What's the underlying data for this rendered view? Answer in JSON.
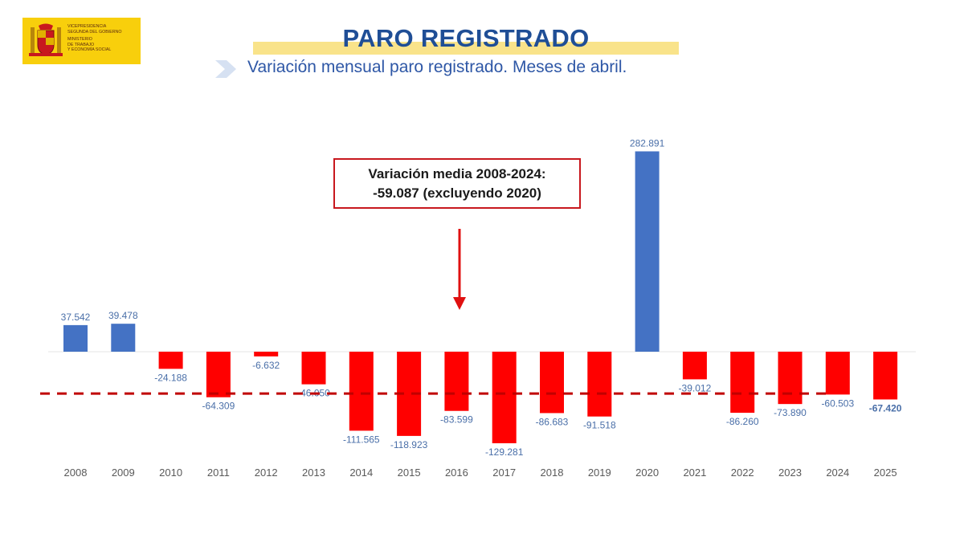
{
  "logo": {
    "lines": [
      "VICEPRESIDENCIA",
      "SEGUNDA DEL GOBIERNO",
      "MINISTERIO",
      "DE TRABAJO",
      "Y ECONOMÍA SOCIAL"
    ]
  },
  "header": {
    "title": "PARO REGISTRADO",
    "subtitle": "Variación mensual paro registrado. Meses de abril."
  },
  "callout": {
    "line1": "Variación media 2008-2024:",
    "line2": "-59.087 (excluyendo 2020)"
  },
  "colors": {
    "positive": "#4472c4",
    "negative": "#ff0000",
    "average_line": "#c00000",
    "title": "#1f4e96",
    "logo_bg": "#f8cf0c"
  },
  "chart_data": {
    "type": "bar",
    "categories": [
      "2008",
      "2009",
      "2010",
      "2011",
      "2012",
      "2013",
      "2014",
      "2015",
      "2016",
      "2017",
      "2018",
      "2019",
      "2020",
      "2021",
      "2022",
      "2023",
      "2024",
      "2025"
    ],
    "values": [
      37542,
      39478,
      -24188,
      -64309,
      -6632,
      -46050,
      -111565,
      -118923,
      -83599,
      -129281,
      -86683,
      -91518,
      282891,
      -39012,
      -86260,
      -73890,
      -60503,
      -67420
    ],
    "data_labels": [
      "37.542",
      "39.478",
      "-24.188",
      "-64.309",
      "-6.632",
      "-46.050",
      "-111.565",
      "-118.923",
      "-83.599",
      "-129.281",
      "-86.683",
      "-91.518",
      "282.891",
      "-39.012",
      "-86.260",
      "-73.890",
      "-60.503",
      "-67.420"
    ],
    "average": -59087,
    "average_line": "dashed",
    "grid": false,
    "legend": "none"
  }
}
